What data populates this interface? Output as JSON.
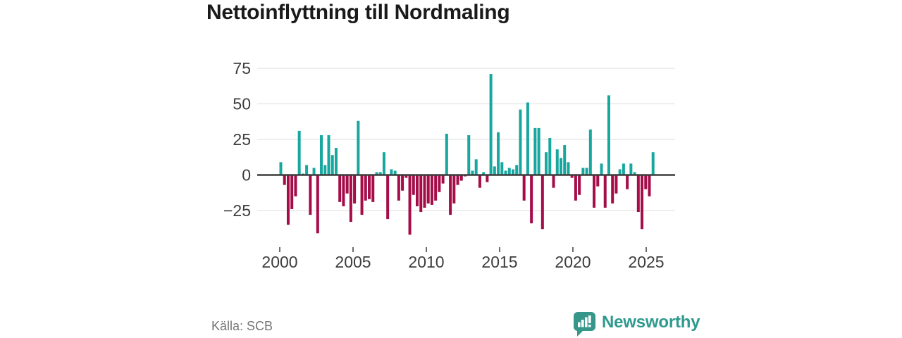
{
  "title": "Nettoinflyttning till Nordmaling",
  "footer": {
    "source": "Källa: SCB",
    "brand": "Newsworthy"
  },
  "colors": {
    "positive": "#17a79f",
    "negative": "#a50d49",
    "grid": "#e4e4e4",
    "zero_line": "#3b3b3b",
    "axis_text": "#3d3d3d",
    "title_text": "#1a1a1a",
    "source_text": "#757575",
    "brand_teal": "#2e9a8e",
    "background": "#ffffff"
  },
  "chart_data": {
    "type": "bar",
    "title": "Nettoinflyttning till Nordmaling",
    "xlabel": "",
    "ylabel": "",
    "ylim": [
      -50,
      80
    ],
    "yticks": [
      75,
      50,
      25,
      0,
      -25
    ],
    "xticks": [
      "2000",
      "2005",
      "2010",
      "2015",
      "2020",
      "2025"
    ],
    "grid": true,
    "legend": "none",
    "x": [
      "2000 K1",
      "2000 K2",
      "2000 K3",
      "2000 K4",
      "2001 K1",
      "2001 K2",
      "2001 K3",
      "2001 K4",
      "2002 K1",
      "2002 K2",
      "2002 K3",
      "2002 K4",
      "2003 K1",
      "2003 K2",
      "2003 K3",
      "2003 K4",
      "2004 K1",
      "2004 K2",
      "2004 K3",
      "2004 K4",
      "2005 K1",
      "2005 K2",
      "2005 K3",
      "2005 K4",
      "2006 K1",
      "2006 K2",
      "2006 K3",
      "2006 K4",
      "2007 K1",
      "2007 K2",
      "2007 K3",
      "2007 K4",
      "2008 K1",
      "2008 K2",
      "2008 K3",
      "2008 K4",
      "2009 K1",
      "2009 K2",
      "2009 K3",
      "2009 K4",
      "2010 K1",
      "2010 K2",
      "2010 K3",
      "2010 K4",
      "2011 K1",
      "2011 K2",
      "2011 K3",
      "2011 K4",
      "2012 K1",
      "2012 K2",
      "2012 K3",
      "2012 K4",
      "2013 K1",
      "2013 K2",
      "2013 K3",
      "2013 K4",
      "2014 K1",
      "2014 K2",
      "2014 K3",
      "2014 K4",
      "2015 K1",
      "2015 K2",
      "2015 K3",
      "2015 K4",
      "2016 K1",
      "2016 K2",
      "2016 K3",
      "2016 K4",
      "2017 K1",
      "2017 K2",
      "2017 K3",
      "2017 K4",
      "2018 K1",
      "2018 K2",
      "2018 K3",
      "2018 K4",
      "2019 K1",
      "2019 K2",
      "2019 K3",
      "2019 K4",
      "2020 K1",
      "2020 K2",
      "2020 K3",
      "2020 K4",
      "2021 K1",
      "2021 K2",
      "2021 K3",
      "2021 K4",
      "2022 K1",
      "2022 K2",
      "2022 K3",
      "2022 K4",
      "2023 K1",
      "2023 K2",
      "2023 K3",
      "2023 K4",
      "2024 K1",
      "2024 K2",
      "2024 K3",
      "2024 K4",
      "2025 K1",
      "2025 K2"
    ],
    "values": [
      9,
      -7,
      -35,
      -24,
      -15,
      31,
      1,
      7,
      -28,
      5,
      -41,
      28,
      7,
      28,
      14,
      19,
      -19,
      -22,
      -13,
      -33,
      -20,
      38,
      -28,
      -18,
      -17,
      -19,
      2,
      2,
      16,
      -31,
      4,
      3,
      -18,
      -11,
      -2,
      -42,
      -14,
      -22,
      -26,
      -23,
      -20,
      -21,
      -18,
      -12,
      -6,
      29,
      -28,
      -20,
      -7,
      -4,
      -1,
      28,
      3,
      11,
      -9,
      2,
      -5,
      71,
      6,
      30,
      9,
      3,
      5,
      4,
      7,
      46,
      -18,
      51,
      -34,
      33,
      33,
      -38,
      16,
      26,
      -9,
      18,
      12,
      21,
      9,
      -2,
      -18,
      -14,
      5,
      5,
      32,
      -23,
      -8,
      8,
      -23,
      56,
      -20,
      -13,
      4,
      8,
      -10,
      8,
      2,
      -26,
      -38,
      -10,
      -15,
      16
    ]
  }
}
